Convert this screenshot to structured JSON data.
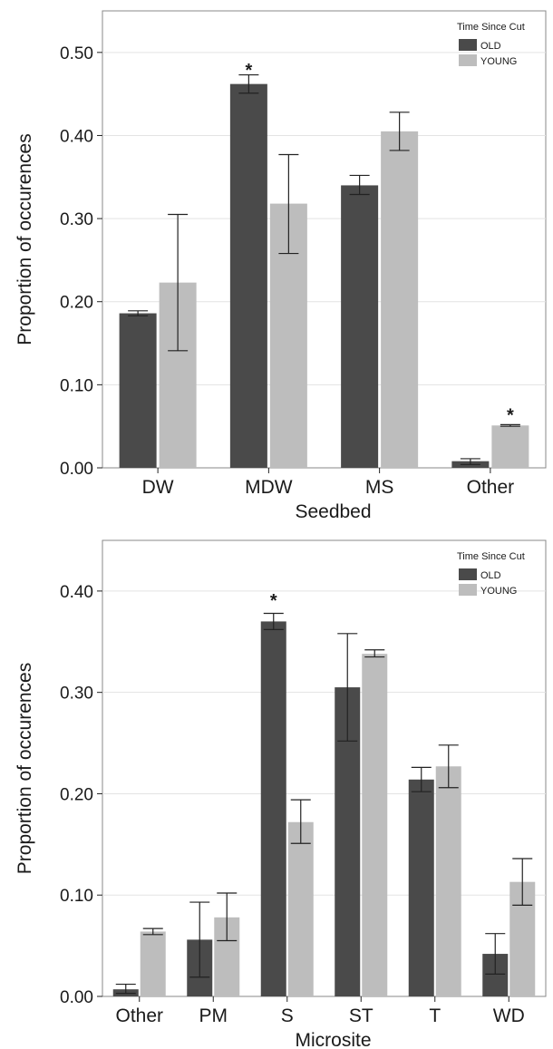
{
  "chart_data": [
    {
      "type": "bar",
      "xlabel": "Seedbed",
      "ylabel": "Proportion of occurences",
      "categories": [
        "DW",
        "MDW",
        "MS",
        "Other"
      ],
      "ylim": [
        0,
        0.55
      ],
      "yticks": [
        "0.00",
        "0.10",
        "0.20",
        "0.30",
        "0.40",
        "0.50"
      ],
      "grid": true,
      "legend": {
        "title": "Time Since Cut",
        "position": "top-right"
      },
      "series": [
        {
          "name": "OLD",
          "color": "#4a4a4a",
          "values": [
            0.186,
            0.462,
            0.34,
            0.008
          ],
          "err_low": [
            0.183,
            0.451,
            0.329,
            0.004
          ],
          "err_high": [
            0.189,
            0.473,
            0.352,
            0.011
          ]
        },
        {
          "name": "YOUNG",
          "color": "#bdbdbd",
          "values": [
            0.223,
            0.318,
            0.405,
            0.051
          ],
          "err_low": [
            0.141,
            0.258,
            0.382,
            0.05
          ],
          "err_high": [
            0.305,
            0.377,
            0.428,
            0.052
          ]
        }
      ],
      "annotations": [
        {
          "text": "*",
          "category": "MDW",
          "series": "OLD",
          "y": 0.48
        },
        {
          "text": "*",
          "category": "Other",
          "series": "YOUNG",
          "y": 0.065
        }
      ]
    },
    {
      "type": "bar",
      "xlabel": "Microsite",
      "ylabel": "Proportion of occurences",
      "categories": [
        "Other",
        "PM",
        "S",
        "ST",
        "T",
        "WD"
      ],
      "ylim": [
        0,
        0.45
      ],
      "yticks": [
        "0.00",
        "0.10",
        "0.20",
        "0.30",
        "0.40"
      ],
      "grid": true,
      "legend": {
        "title": "Time Since Cut",
        "position": "top-right"
      },
      "series": [
        {
          "name": "OLD",
          "color": "#4a4a4a",
          "values": [
            0.007,
            0.056,
            0.37,
            0.305,
            0.214,
            0.042
          ],
          "err_low": [
            0.003,
            0.019,
            0.362,
            0.252,
            0.202,
            0.022
          ],
          "err_high": [
            0.012,
            0.093,
            0.378,
            0.358,
            0.226,
            0.062
          ]
        },
        {
          "name": "YOUNG",
          "color": "#bdbdbd",
          "values": [
            0.064,
            0.078,
            0.172,
            0.338,
            0.227,
            0.113
          ],
          "err_low": [
            0.061,
            0.055,
            0.151,
            0.335,
            0.206,
            0.09
          ],
          "err_high": [
            0.067,
            0.102,
            0.194,
            0.342,
            0.248,
            0.136
          ]
        }
      ],
      "annotations": [
        {
          "text": "*",
          "category": "S",
          "series": "OLD",
          "y": 0.392
        }
      ]
    }
  ]
}
